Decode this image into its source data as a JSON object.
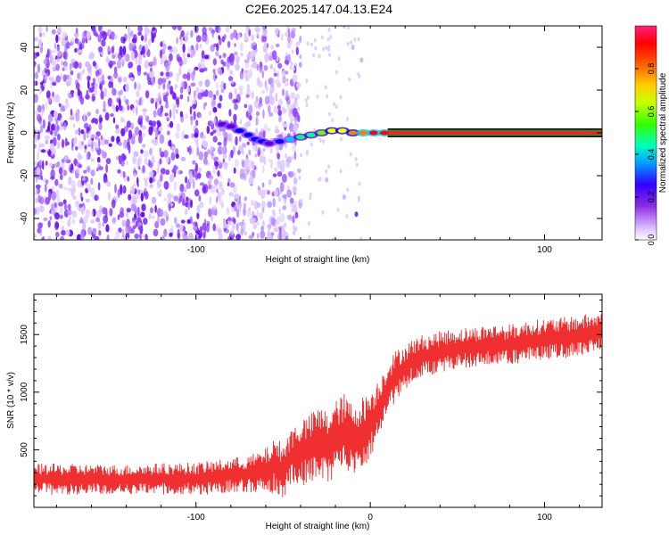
{
  "title": "C2E6.2025.147.04.13.E24",
  "colors": {
    "snr_line": "#f03030",
    "line_band": [
      "#000000",
      "#00a040",
      "#ff2020",
      "#ff0000"
    ],
    "colormap": [
      "#e8d8ff",
      "#c89cff",
      "#9040ff",
      "#5a00e0",
      "#0000ff",
      "#00c8ff",
      "#00ff80",
      "#60ff00",
      "#ffff00",
      "#ff8000",
      "#ff0000",
      "#ff2060"
    ]
  },
  "chart_data": [
    {
      "type": "heatmap",
      "name": "spectrogram",
      "xlabel": "Height of straight line (km)",
      "ylabel": "Frequency (Hz)",
      "xlim": [
        -193,
        133
      ],
      "ylim": [
        -50,
        50
      ],
      "xticks": [
        -100,
        100
      ],
      "xtick_labels": [
        "-100",
        "100"
      ],
      "yticks": [
        -40,
        -20,
        0,
        20,
        40
      ],
      "ytick_labels": [
        "-40",
        "-20",
        "0",
        "20",
        "40"
      ],
      "colorbar": {
        "label": "Normalized spectral amplitude",
        "range": [
          0,
          1
        ],
        "ticks": [
          0.0,
          0.2,
          0.4,
          0.6,
          0.8
        ],
        "tick_labels": [
          "0.0",
          "0.2",
          "0.4",
          "0.6",
          "0.8"
        ]
      },
      "features": {
        "noise_region_x": [
          -193,
          -50
        ],
        "meteor_track": [
          {
            "x": -85,
            "y": 4,
            "amp": 0.3
          },
          {
            "x": -80,
            "y": 3,
            "amp": 0.3
          },
          {
            "x": -75,
            "y": 1,
            "amp": 0.35
          },
          {
            "x": -70,
            "y": -1,
            "amp": 0.35
          },
          {
            "x": -66,
            "y": -3,
            "amp": 0.4
          },
          {
            "x": -62,
            "y": -4,
            "amp": 0.4
          },
          {
            "x": -58,
            "y": -5,
            "amp": 0.3
          },
          {
            "x": -52,
            "y": -4,
            "amp": 0.35
          },
          {
            "x": -46,
            "y": -3,
            "amp": 0.45
          },
          {
            "x": -40,
            "y": -2,
            "amp": 0.5
          },
          {
            "x": -34,
            "y": -1,
            "amp": 0.55
          },
          {
            "x": -28,
            "y": 0,
            "amp": 0.6
          },
          {
            "x": -22,
            "y": 1,
            "amp": 0.7
          },
          {
            "x": -16,
            "y": 1,
            "amp": 0.75
          },
          {
            "x": -10,
            "y": 0,
            "amp": 0.8
          },
          {
            "x": -4,
            "y": 0,
            "amp": 0.85
          },
          {
            "x": 2,
            "y": 0,
            "amp": 0.9
          },
          {
            "x": 8,
            "y": 0,
            "amp": 0.95
          }
        ],
        "steady_line": {
          "x_start": 10,
          "x_end": 133,
          "y": 0,
          "amp": 1.0
        }
      }
    },
    {
      "type": "line",
      "name": "snr",
      "xlabel": "Height of straight line (km)",
      "ylabel": "SNR (10 * v/v)",
      "xlim": [
        -193,
        133
      ],
      "ylim": [
        0,
        1850
      ],
      "xticks": [
        -100,
        0,
        100
      ],
      "xtick_labels": [
        "-100",
        "0",
        "100"
      ],
      "yticks": [
        500,
        1000,
        1500
      ],
      "ytick_labels": [
        "500",
        "1000",
        "1500"
      ],
      "series": [
        {
          "name": "SNR",
          "x": [
            -193,
            -180,
            -160,
            -140,
            -120,
            -100,
            -90,
            -80,
            -70,
            -60,
            -55,
            -50,
            -45,
            -40,
            -35,
            -30,
            -25,
            -20,
            -15,
            -10,
            -5,
            0,
            5,
            10,
            15,
            20,
            25,
            30,
            40,
            50,
            60,
            70,
            80,
            90,
            100,
            110,
            120,
            133
          ],
          "values": [
            250,
            240,
            245,
            240,
            245,
            250,
            260,
            280,
            290,
            310,
            360,
            320,
            440,
            480,
            500,
            560,
            520,
            600,
            650,
            580,
            630,
            720,
            860,
            1040,
            1150,
            1220,
            1280,
            1310,
            1350,
            1380,
            1390,
            1410,
            1410,
            1440,
            1460,
            1470,
            1490,
            1520
          ],
          "spread": [
            130,
            140,
            130,
            130,
            140,
            140,
            150,
            150,
            160,
            200,
            240,
            250,
            260,
            300,
            300,
            320,
            330,
            330,
            340,
            330,
            330,
            300,
            260,
            240,
            220,
            200,
            190,
            190,
            180,
            180,
            180,
            180,
            180,
            180,
            180,
            180,
            180,
            180
          ]
        }
      ]
    }
  ]
}
